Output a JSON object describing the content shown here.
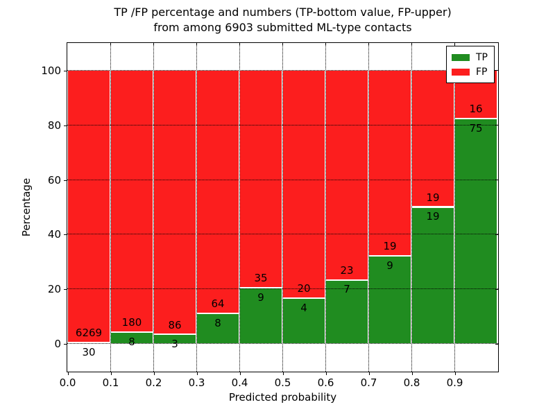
{
  "header": {
    "title_line1": "TP /FP percentage and numbers (TP-bottom value, FP-upper)",
    "title_line2": "from among 6903 submitted ML-type contacts"
  },
  "chart_data": {
    "type": "bar",
    "stacked": true,
    "title": "TP /FP percentage and numbers (TP-bottom value, FP-upper)\nfrom among 6903 submitted ML-type contacts",
    "xlabel": "Predicted probability",
    "ylabel": "Percentage",
    "total_contacts": 6903,
    "xlim": [
      0,
      1
    ],
    "ylim": [
      -10,
      110
    ],
    "grid": "dotted",
    "x_tick_values": [
      0.0,
      0.1,
      0.2,
      0.3,
      0.4,
      0.5,
      0.6,
      0.7,
      0.8,
      0.9
    ],
    "x_tick_labels": [
      "0.0",
      "0.1",
      "0.2",
      "0.3",
      "0.4",
      "0.5",
      "0.6",
      "0.7",
      "0.8",
      "0.9"
    ],
    "y_tick_values": [
      0,
      20,
      40,
      60,
      80,
      100
    ],
    "y_tick_labels": [
      "0",
      "20",
      "40",
      "60",
      "80",
      "100"
    ],
    "colors": {
      "tp": "#208c20",
      "fp": "#fc1e1e",
      "bar_edge": "#ffffff"
    },
    "legend": {
      "position": "upper right",
      "entries": [
        {
          "label": "TP",
          "color": "#208c20"
        },
        {
          "label": "FP",
          "color": "#fc1e1e"
        }
      ]
    },
    "series_note": "Each bin stacked to 100%: TP percentage on bottom (green), FP on top (red). Labels show raw counts (TP below boundary, FP above).",
    "bins": [
      {
        "x0": 0.0,
        "x1": 0.1,
        "tp": 30,
        "fp": 6269
      },
      {
        "x0": 0.1,
        "x1": 0.2,
        "tp": 8,
        "fp": 180
      },
      {
        "x0": 0.2,
        "x1": 0.3,
        "tp": 3,
        "fp": 86
      },
      {
        "x0": 0.3,
        "x1": 0.4,
        "tp": 8,
        "fp": 64
      },
      {
        "x0": 0.4,
        "x1": 0.5,
        "tp": 9,
        "fp": 35
      },
      {
        "x0": 0.5,
        "x1": 0.6,
        "tp": 4,
        "fp": 20
      },
      {
        "x0": 0.6,
        "x1": 0.7,
        "tp": 7,
        "fp": 23
      },
      {
        "x0": 0.7,
        "x1": 0.8,
        "tp": 9,
        "fp": 19
      },
      {
        "x0": 0.8,
        "x1": 0.9,
        "tp": 19,
        "fp": 19
      },
      {
        "x0": 0.9,
        "x1": 1.0,
        "tp": 75,
        "fp": 16
      }
    ]
  }
}
